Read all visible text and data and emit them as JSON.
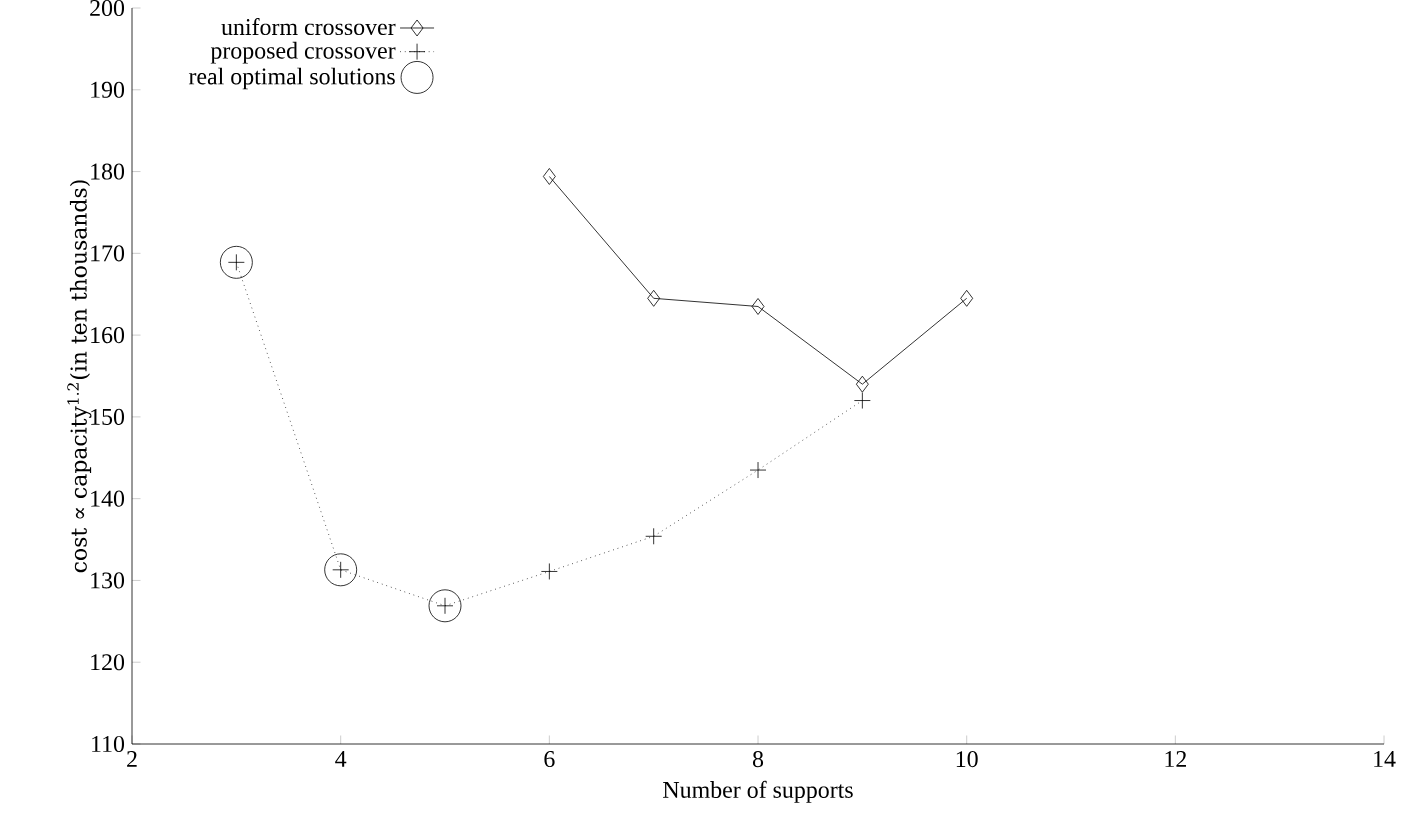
{
  "chart_data": {
    "type": "line",
    "xlabel": "Number of supports",
    "ylabel": "cost ∝ capacity$^{1.2}$(in ten thousands)",
    "xlim": [
      2,
      14
    ],
    "ylim": [
      110,
      200
    ],
    "xticks": [
      2,
      4,
      6,
      8,
      10,
      12,
      14
    ],
    "yticks": [
      110,
      120,
      130,
      140,
      150,
      160,
      170,
      180,
      190,
      200
    ],
    "grid": false,
    "legend": "top left",
    "series": [
      {
        "name": "uniform crossover",
        "color": "#000000",
        "marker": "diamond",
        "line_style": "solid",
        "x": [
          6,
          7,
          8,
          9,
          10
        ],
        "values": [
          179.4,
          164.5,
          163.5,
          154,
          164.5
        ]
      },
      {
        "name": "proposed crossover",
        "color": "#000000",
        "marker": "cross",
        "line_style": "dotted",
        "x": [
          3,
          4,
          5,
          6,
          7,
          8,
          9
        ],
        "values": [
          168.9,
          131.3,
          126.9,
          131.1,
          135.4,
          143.5,
          152
        ]
      },
      {
        "name": "real optimal solutions",
        "color": "#000000",
        "type": "scatter",
        "marker": "circle",
        "x": [
          3,
          4,
          5
        ],
        "values": [
          168.9,
          131.3,
          126.9
        ]
      }
    ]
  }
}
